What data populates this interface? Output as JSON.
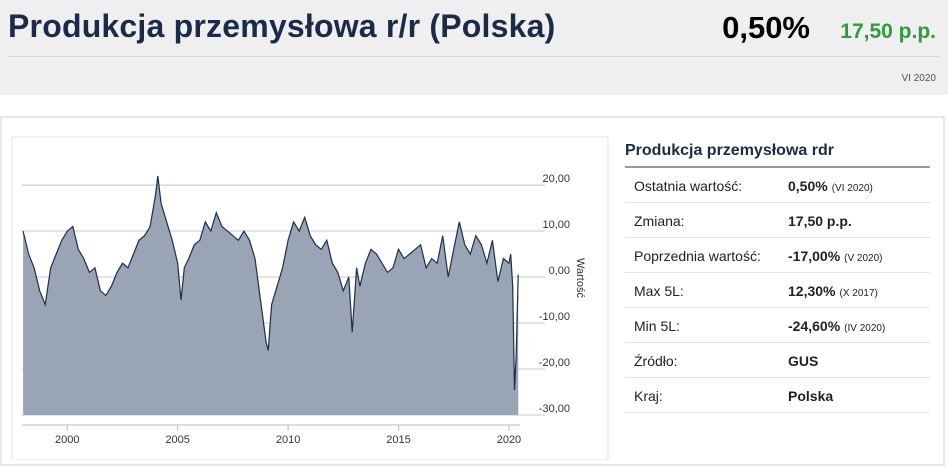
{
  "header": {
    "title": "Produkcja przemysłowa r/r (Polska)",
    "value": "0,50%",
    "change": "17,50 p.p.",
    "date": "VI 2020"
  },
  "chart_data": {
    "type": "area",
    "y_label": "Wartość",
    "x": [
      1998.0,
      1998.25,
      1998.5,
      1998.75,
      1999.0,
      1999.25,
      1999.5,
      1999.75,
      2000.0,
      2000.25,
      2000.5,
      2000.75,
      2001.0,
      2001.25,
      2001.5,
      2001.75,
      2002.0,
      2002.25,
      2002.5,
      2002.75,
      2003.0,
      2003.25,
      2003.5,
      2003.75,
      2004.0,
      2004.1,
      2004.25,
      2004.5,
      2004.75,
      2005.0,
      2005.15,
      2005.3,
      2005.5,
      2005.75,
      2006.0,
      2006.25,
      2006.5,
      2006.75,
      2007.0,
      2007.25,
      2007.5,
      2007.75,
      2008.0,
      2008.25,
      2008.5,
      2008.75,
      2009.0,
      2009.1,
      2009.25,
      2009.5,
      2009.75,
      2010.0,
      2010.25,
      2010.5,
      2010.75,
      2011.0,
      2011.25,
      2011.5,
      2011.75,
      2012.0,
      2012.25,
      2012.5,
      2012.75,
      2012.9,
      2013.1,
      2013.25,
      2013.5,
      2013.75,
      2014.0,
      2014.25,
      2014.5,
      2014.75,
      2015.0,
      2015.25,
      2015.5,
      2015.75,
      2016.0,
      2016.25,
      2016.5,
      2016.75,
      2017.0,
      2017.25,
      2017.5,
      2017.75,
      2018.0,
      2018.25,
      2018.5,
      2018.75,
      2019.0,
      2019.25,
      2019.5,
      2019.75,
      2020.0,
      2020.08,
      2020.17,
      2020.25,
      2020.33,
      2020.42
    ],
    "series": [
      {
        "name": "Produkcja przemysłowa rdr",
        "color": "#1e2d4a",
        "fill": "#99a5b4",
        "values": [
          10,
          5,
          2,
          -3,
          -6,
          2,
          5,
          8,
          10,
          11,
          6,
          4,
          1,
          2,
          -3,
          -4,
          -2,
          1,
          3,
          2,
          5,
          8,
          9,
          11,
          18,
          22,
          16,
          12,
          8,
          3,
          -5,
          2,
          4,
          7,
          8,
          12,
          10,
          14,
          11,
          10,
          9,
          8,
          10,
          8,
          4,
          -5,
          -14,
          -16,
          -6,
          -2,
          2,
          8,
          12,
          10,
          13,
          9,
          7,
          6,
          8,
          3,
          1,
          -3,
          0,
          -12,
          2,
          -2,
          3,
          6,
          5,
          3,
          1,
          2,
          6,
          4,
          5,
          6,
          7,
          2,
          4,
          3,
          9,
          0,
          6,
          12,
          7,
          5,
          9,
          7,
          3,
          8,
          -1,
          4,
          3,
          5,
          -2,
          -24.6,
          -17,
          0.5
        ]
      }
    ],
    "xlim": [
      1997.95,
      2020.5
    ],
    "xticks": [
      2000,
      2005,
      2010,
      2015,
      2020
    ],
    "ylim": [
      -30,
      29.8
    ],
    "yticks": [
      {
        "value": 20,
        "label": "20,00"
      },
      {
        "value": 10,
        "label": "10,00"
      },
      {
        "value": 0,
        "label": "0,00"
      },
      {
        "value": -10,
        "label": "-10,00"
      },
      {
        "value": -20,
        "label": "-20,00"
      },
      {
        "value": -30,
        "label": "-30,00"
      }
    ],
    "grid": true
  },
  "table": {
    "title": "Produkcja przemysłowa rdr",
    "rows": [
      {
        "label": "Ostatnia wartość:",
        "value": "0,50%",
        "note": "(VI 2020)"
      },
      {
        "label": "Zmiana:",
        "value": "17,50 p.p."
      },
      {
        "label": "Poprzednia wartość:",
        "value": "-17,00%",
        "note": "(V 2020)"
      },
      {
        "label": "Max 5L:",
        "value": "12,30%",
        "note": "(X 2017)"
      },
      {
        "label": "Min 5L:",
        "value": "-24,60%",
        "note": "(IV 2020)"
      },
      {
        "label": "Źródło:",
        "value": "GUS"
      },
      {
        "label": "Kraj:",
        "value": "Polska"
      }
    ]
  }
}
